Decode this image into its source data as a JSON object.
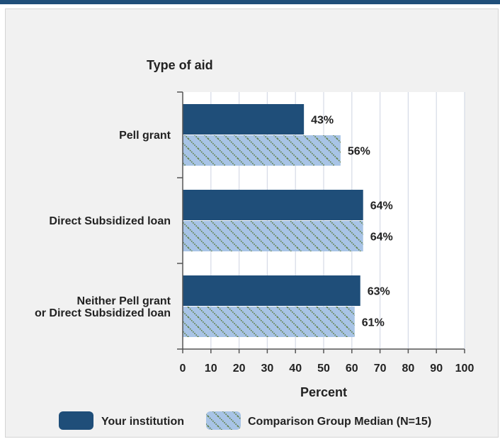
{
  "colors": {
    "top_bar": "#1f4e79",
    "panel_bg": "#f1f1f1",
    "plot_bg": "#ffffff",
    "grid": "#d6dae6",
    "axis": "#555555",
    "series_institution": "#1f4e79",
    "series_comparison_fill": "#a8c4e6",
    "series_comparison_hatch": "#5a7a3a"
  },
  "chart_data": {
    "type": "bar",
    "orientation": "horizontal",
    "title": "Type of aid",
    "xlabel": "Percent",
    "ylabel": "",
    "xlim": [
      0,
      100
    ],
    "xticks": [
      "0",
      "10",
      "20",
      "30",
      "40",
      "50",
      "60",
      "70",
      "80",
      "90",
      "100"
    ],
    "grid": true,
    "legend_position": "bottom",
    "categories": [
      [
        "Pell grant"
      ],
      [
        "Direct Subsidized loan"
      ],
      [
        "Neither Pell grant",
        "or Direct Subsidized loan"
      ]
    ],
    "series": [
      {
        "name": "Your institution",
        "values": [
          43,
          64,
          63
        ],
        "labels": [
          "43%",
          "64%",
          "63%"
        ],
        "pattern": "solid"
      },
      {
        "name": "Comparison Group Median (N=15)",
        "values": [
          56,
          64,
          61
        ],
        "labels": [
          "56%",
          "64%",
          "61%"
        ],
        "pattern": "hatched"
      }
    ]
  }
}
